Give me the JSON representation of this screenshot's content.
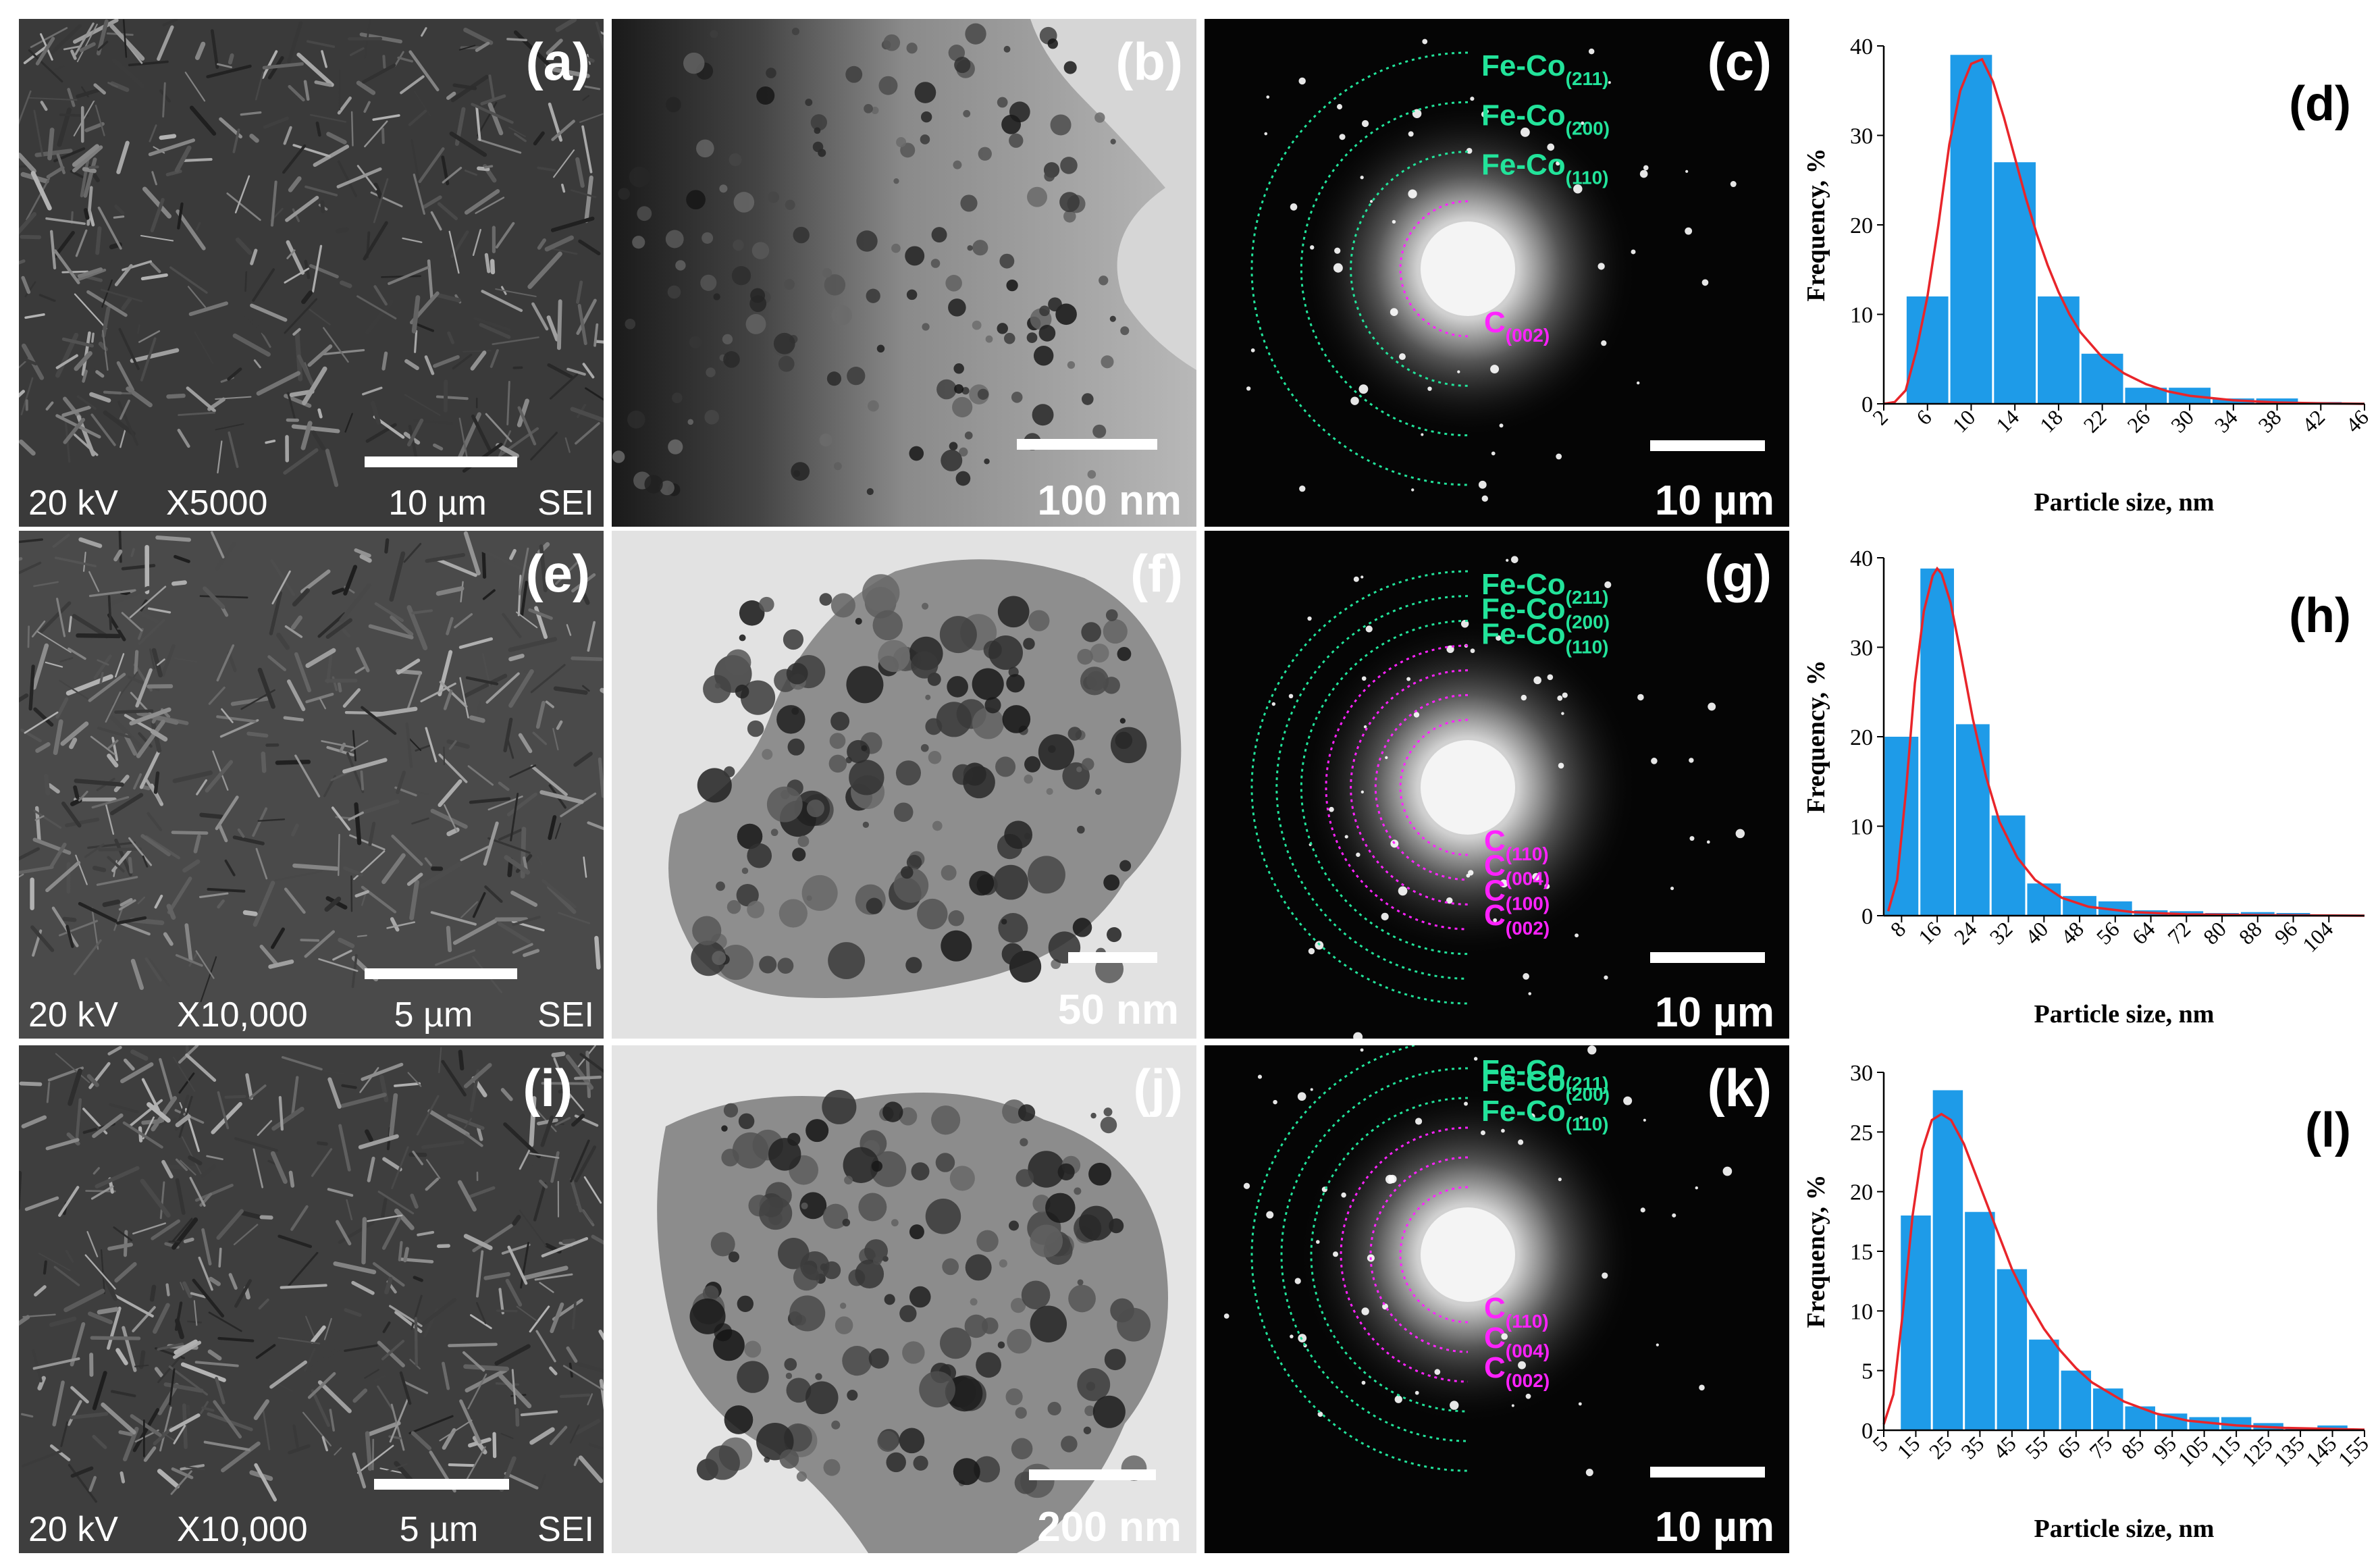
{
  "sem_panels": [
    {
      "letter": "(a)",
      "voltage": "20 kV",
      "magnification": "X5000",
      "scale": "10 µm",
      "mode": "SEI"
    },
    {
      "letter": "(e)",
      "voltage": "20 kV",
      "magnification": "X10,000",
      "scale": "5 µm",
      "mode": "SEI"
    },
    {
      "letter": "(i)",
      "voltage": "20 kV",
      "magnification": "X10,000",
      "scale": "5 µm",
      "mode": "SEI"
    }
  ],
  "tem_panels": [
    {
      "letter": "(b)",
      "scale": "100 nm",
      "background": "dark"
    },
    {
      "letter": "(f)",
      "scale": "50 nm",
      "background": "light"
    },
    {
      "letter": "(j)",
      "scale": "200 nm",
      "background": "light"
    }
  ],
  "saed_panels": [
    {
      "letter": "(c)",
      "scale": "10 µm",
      "rings": [
        {
          "base": "Fe-Co",
          "sub": "(211)",
          "color": "#22e39a"
        },
        {
          "base": "Fe-Co",
          "sub": "(200)",
          "color": "#22e39a"
        },
        {
          "base": "Fe-Co",
          "sub": "(110)",
          "color": "#22e39a"
        },
        {
          "base": "C",
          "sub": "(002)",
          "color": "#ff22ff"
        }
      ]
    },
    {
      "letter": "(g)",
      "scale": "10 µm",
      "rings": [
        {
          "base": "Fe-Co",
          "sub": "(211)",
          "color": "#22e39a"
        },
        {
          "base": "Fe-Co",
          "sub": "(200)",
          "color": "#22e39a"
        },
        {
          "base": "Fe-Co",
          "sub": "(110)",
          "color": "#22e39a"
        },
        {
          "base": "C",
          "sub": "(002)",
          "color": "#ff22ff"
        },
        {
          "base": "C",
          "sub": "(100)",
          "color": "#ff22ff"
        },
        {
          "base": "C",
          "sub": "(004)",
          "color": "#ff22ff"
        },
        {
          "base": "C",
          "sub": "(110)",
          "color": "#ff22ff"
        }
      ]
    },
    {
      "letter": "(k)",
      "scale": "10 µm",
      "rings": [
        {
          "base": "Fe-Co",
          "sub": "(211)",
          "color": "#22e39a"
        },
        {
          "base": "Fe-Co",
          "sub": "(200)",
          "color": "#22e39a"
        },
        {
          "base": "Fe-Co",
          "sub": "(110)",
          "color": "#22e39a"
        },
        {
          "base": "C",
          "sub": "(002)",
          "color": "#ff22ff"
        },
        {
          "base": "C",
          "sub": "(004)",
          "color": "#ff22ff"
        },
        {
          "base": "C",
          "sub": "(110)",
          "color": "#ff22ff"
        }
      ]
    }
  ],
  "chart_data": [
    {
      "type": "bar",
      "letter": "(d)",
      "xlabel": "Particle size, nm",
      "ylabel": "Frequency, %",
      "ylim": [
        0,
        40
      ],
      "yticks": [
        0,
        10,
        20,
        30,
        40
      ],
      "xlim": [
        2,
        46
      ],
      "xticks": [
        2,
        6,
        10,
        14,
        18,
        22,
        26,
        30,
        34,
        38,
        42,
        46
      ],
      "bin_width": 4,
      "bars": [
        {
          "x": 6,
          "y": 12
        },
        {
          "x": 10,
          "y": 39
        },
        {
          "x": 14,
          "y": 27
        },
        {
          "x": 18,
          "y": 12
        },
        {
          "x": 22,
          "y": 5.6
        },
        {
          "x": 26,
          "y": 1.8
        },
        {
          "x": 30,
          "y": 1.8
        },
        {
          "x": 34,
          "y": 0.6
        },
        {
          "x": 38,
          "y": 0.6
        },
        {
          "x": 42,
          "y": 0.2
        }
      ],
      "fit_curve": [
        [
          2,
          0
        ],
        [
          3,
          0.2
        ],
        [
          4,
          1.5
        ],
        [
          5,
          6
        ],
        [
          6,
          12
        ],
        [
          7,
          20
        ],
        [
          8,
          29
        ],
        [
          9,
          35
        ],
        [
          10,
          38
        ],
        [
          11,
          38.5
        ],
        [
          12,
          36
        ],
        [
          13,
          32
        ],
        [
          14,
          27.5
        ],
        [
          15,
          23
        ],
        [
          16,
          19
        ],
        [
          17,
          15.5
        ],
        [
          18,
          12.5
        ],
        [
          19,
          10
        ],
        [
          20,
          8
        ],
        [
          22,
          5.2
        ],
        [
          24,
          3.4
        ],
        [
          26,
          2.2
        ],
        [
          28,
          1.4
        ],
        [
          30,
          0.9
        ],
        [
          34,
          0.4
        ],
        [
          38,
          0.15
        ],
        [
          42,
          0.05
        ],
        [
          46,
          0
        ]
      ],
      "bar_color": "#1e9be8",
      "curve_color": "#e8252a"
    },
    {
      "type": "bar",
      "letter": "(h)",
      "xlabel": "Particle size, nm",
      "ylabel": "Frequency, %",
      "ylim": [
        0,
        40
      ],
      "yticks": [
        0,
        10,
        20,
        30,
        40
      ],
      "xlim": [
        4,
        112
      ],
      "xticks": [
        8,
        16,
        24,
        32,
        40,
        48,
        56,
        64,
        72,
        80,
        88,
        96,
        104
      ],
      "bin_width": 8,
      "bars": [
        {
          "x": 8,
          "y": 20
        },
        {
          "x": 16,
          "y": 38.8
        },
        {
          "x": 24,
          "y": 21.4
        },
        {
          "x": 32,
          "y": 11.2
        },
        {
          "x": 40,
          "y": 3.6
        },
        {
          "x": 48,
          "y": 2.2
        },
        {
          "x": 56,
          "y": 1.6
        },
        {
          "x": 64,
          "y": 0.6
        },
        {
          "x": 72,
          "y": 0.5
        },
        {
          "x": 80,
          "y": 0.3
        },
        {
          "x": 88,
          "y": 0.4
        },
        {
          "x": 96,
          "y": 0.3
        }
      ],
      "fit_curve": [
        [
          5,
          0.5
        ],
        [
          7,
          4
        ],
        [
          9,
          14
        ],
        [
          11,
          26
        ],
        [
          13,
          34
        ],
        [
          15,
          38
        ],
        [
          16,
          38.8
        ],
        [
          17,
          38.2
        ],
        [
          19,
          35
        ],
        [
          21,
          30
        ],
        [
          24,
          22
        ],
        [
          27,
          15.5
        ],
        [
          30,
          10.5
        ],
        [
          34,
          6.5
        ],
        [
          38,
          4
        ],
        [
          44,
          2
        ],
        [
          50,
          1
        ],
        [
          60,
          0.4
        ],
        [
          72,
          0.15
        ],
        [
          90,
          0.05
        ],
        [
          112,
          0
        ]
      ],
      "bar_color": "#1e9be8",
      "curve_color": "#e8252a"
    },
    {
      "type": "bar",
      "letter": "(l)",
      "xlabel": "Particle size, nm",
      "ylabel": "Frequency, %",
      "ylim": [
        0,
        30
      ],
      "yticks": [
        0,
        5,
        10,
        15,
        20,
        25,
        30
      ],
      "xlim": [
        5,
        155
      ],
      "xticks": [
        5,
        15,
        25,
        35,
        45,
        55,
        65,
        75,
        85,
        95,
        105,
        115,
        125,
        135,
        145,
        155
      ],
      "bin_width": 10,
      "bars": [
        {
          "x": 15,
          "y": 18
        },
        {
          "x": 25,
          "y": 28.5
        },
        {
          "x": 35,
          "y": 18.3
        },
        {
          "x": 45,
          "y": 13.5
        },
        {
          "x": 55,
          "y": 7.6
        },
        {
          "x": 65,
          "y": 5
        },
        {
          "x": 75,
          "y": 3.5
        },
        {
          "x": 85,
          "y": 2
        },
        {
          "x": 95,
          "y": 1.4
        },
        {
          "x": 105,
          "y": 1.1
        },
        {
          "x": 115,
          "y": 1.1
        },
        {
          "x": 125,
          "y": 0.6
        },
        {
          "x": 135,
          "y": 0.2
        },
        {
          "x": 145,
          "y": 0.4
        }
      ],
      "fit_curve": [
        [
          5,
          0.5
        ],
        [
          8,
          3
        ],
        [
          11,
          10
        ],
        [
          14,
          18
        ],
        [
          17,
          23.5
        ],
        [
          20,
          26
        ],
        [
          23,
          26.5
        ],
        [
          26,
          26
        ],
        [
          30,
          24
        ],
        [
          35,
          20.5
        ],
        [
          40,
          17
        ],
        [
          45,
          13.5
        ],
        [
          50,
          10.8
        ],
        [
          55,
          8.5
        ],
        [
          60,
          6.7
        ],
        [
          65,
          5.2
        ],
        [
          70,
          4
        ],
        [
          80,
          2.4
        ],
        [
          90,
          1.4
        ],
        [
          100,
          0.8
        ],
        [
          115,
          0.4
        ],
        [
          130,
          0.2
        ],
        [
          155,
          0.05
        ]
      ],
      "bar_color": "#1e9be8",
      "curve_color": "#e8252a"
    }
  ]
}
